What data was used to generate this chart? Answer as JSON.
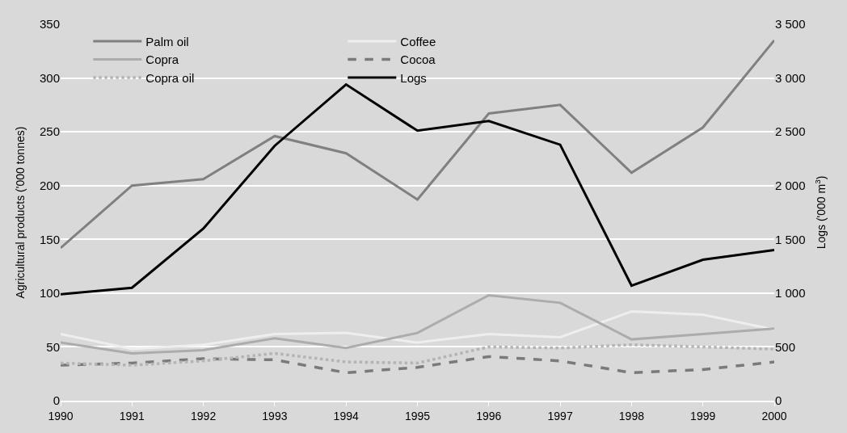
{
  "chart_data": {
    "type": "line",
    "x": [
      1990,
      1991,
      1992,
      1993,
      1994,
      1995,
      1996,
      1997,
      1998,
      1999,
      2000
    ],
    "xlim": [
      1990,
      2000
    ],
    "xticks": [
      1990,
      1991,
      1992,
      1993,
      1994,
      1995,
      1996,
      1997,
      1998,
      1999,
      2000
    ],
    "ylabel": "Agricultural products ('000 tonnes)",
    "ylim": [
      0,
      350
    ],
    "yticks": [
      0,
      50,
      100,
      150,
      200,
      250,
      300,
      350
    ],
    "y2label": "Logs ('000 m$^{3}$)",
    "y2lim": [
      0,
      3500
    ],
    "y2ticks": [
      0,
      500,
      {
        "value": 1000,
        "label": "1 000"
      },
      {
        "value": 1500,
        "label": "1 500"
      },
      {
        "value": 2000,
        "label": "2 000"
      },
      {
        "value": 2500,
        "label": "2 500"
      },
      {
        "value": 3000,
        "label": "3 000"
      },
      {
        "value": 3500,
        "label": "3 500"
      }
    ],
    "grid": "y",
    "legend": "top",
    "series": [
      {
        "name": "Palm oil",
        "color": "#808080",
        "values": [
          142,
          200,
          206,
          246,
          230,
          187,
          267,
          275,
          212,
          254,
          335
        ]
      },
      {
        "name": "Coffee",
        "color": "#eeeeee",
        "values": [
          62,
          48,
          52,
          62,
          63,
          54,
          62,
          59,
          83,
          80,
          66
        ]
      },
      {
        "name": "Copra",
        "color": "#acacac",
        "values": [
          54,
          44,
          47,
          58,
          49,
          63,
          98,
          91,
          57,
          62,
          67
        ]
      },
      {
        "name": "Cocoa",
        "color": "#7a7a7a",
        "line_style": "dashed",
        "values": [
          33,
          35,
          39,
          38,
          26,
          31,
          41,
          37,
          26,
          29,
          36
        ]
      },
      {
        "name": "Copra oil",
        "color": "#b4b4b4",
        "line_style": "dotted",
        "values": [
          35,
          33,
          37,
          44,
          36,
          35,
          50,
          49,
          52,
          50,
          48
        ]
      },
      {
        "name": "Logs",
        "color": "#000000",
        "axis": "y2",
        "values": [
          990,
          1050,
          1600,
          2370,
          2940,
          2510,
          2600,
          2380,
          1070,
          1310,
          1400
        ]
      }
    ]
  }
}
